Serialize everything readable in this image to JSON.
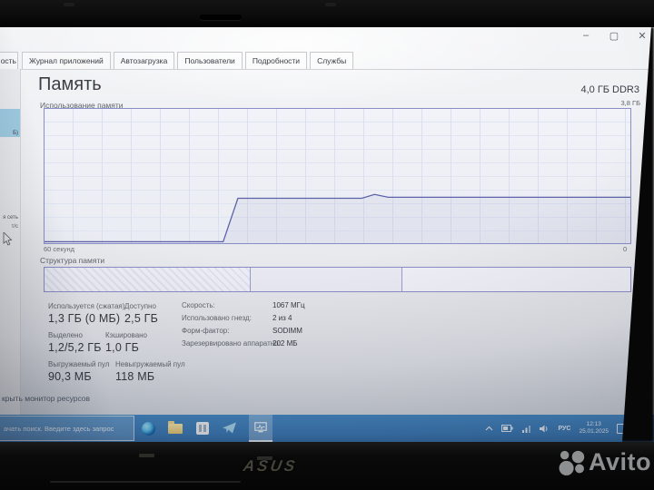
{
  "window": {
    "minimize_label": "–",
    "maximize_label": "▢",
    "close_label": "✕"
  },
  "tabs": {
    "clipped_performance_fragment": "ость",
    "items": [
      "Журнал приложений",
      "Автозагрузка",
      "Пользователи",
      "Подробности",
      "Службы"
    ]
  },
  "sidebar": {
    "selected_memory_fragment": "Б)",
    "network_fragment": "я сеть",
    "throughput_fragment": "т/с"
  },
  "memory": {
    "title": "Память",
    "capacity": "4,0 ГБ DDR3",
    "usage_label": "Использование памяти",
    "scale_max": "3,8 ГБ",
    "time_window": "60 секунд",
    "axis_end": "0",
    "composition_label": "Структура памяти",
    "stats": {
      "in_use_label": "Используется (сжатая)",
      "in_use_value": "1,3 ГБ (0 МБ)",
      "available_label": "Доступно",
      "available_value": "2,5 ГБ",
      "committed_label": "Выделено",
      "committed_value": "1,2/5,2 ГБ",
      "cached_label": "Кэшировано",
      "cached_value": "1,0 ГБ",
      "paged_pool_label": "Выгружаемый пул",
      "paged_pool_value": "90,3 МБ",
      "nonpaged_pool_label": "Невыгружаемый пул",
      "nonpaged_pool_value": "118 МБ"
    },
    "details": [
      {
        "label": "Скорость:",
        "value": "1067 МГц"
      },
      {
        "label": "Использовано гнезд:",
        "value": "2 из 4"
      },
      {
        "label": "Форм-фактор:",
        "value": "SODIMM"
      },
      {
        "label": "Зарезервировано аппаратно:",
        "value": "202 МБ"
      }
    ]
  },
  "chart_data": {
    "type": "area",
    "title": "Использование памяти",
    "xlabel": "60 секунд",
    "x_range_seconds": [
      60,
      0
    ],
    "ylim_gb": [
      0,
      3.8
    ],
    "grid": true,
    "line_color": "#5d62a8",
    "fill_color": "rgba(93,98,168,0.07)",
    "series": [
      {
        "name": "memory-usage-gb",
        "points_sec_gb": [
          [
            0,
            0.04
          ],
          [
            18.3,
            0.04
          ],
          [
            19.8,
            1.27
          ],
          [
            32.5,
            1.27
          ],
          [
            33.8,
            1.38
          ],
          [
            35.2,
            1.3
          ],
          [
            60,
            1.3
          ]
        ]
      }
    ],
    "composition": {
      "segments": [
        {
          "name": "in-use",
          "pct": 35
        },
        {
          "name": "modified-standby",
          "pct": 26
        },
        {
          "name": "free",
          "pct": 39
        }
      ]
    }
  },
  "footer_link": {
    "open_resource_monitor_fragment": "крыть монитор ресурсов"
  },
  "taskbar": {
    "search_fragment": "ачать поиск. Введите здесь запрос",
    "tray": {
      "language": "РУС",
      "time": "12:13",
      "date": "25.01.2025"
    }
  },
  "laptop": {
    "brand": "ASUS"
  },
  "watermark": {
    "brand": "Avito"
  }
}
